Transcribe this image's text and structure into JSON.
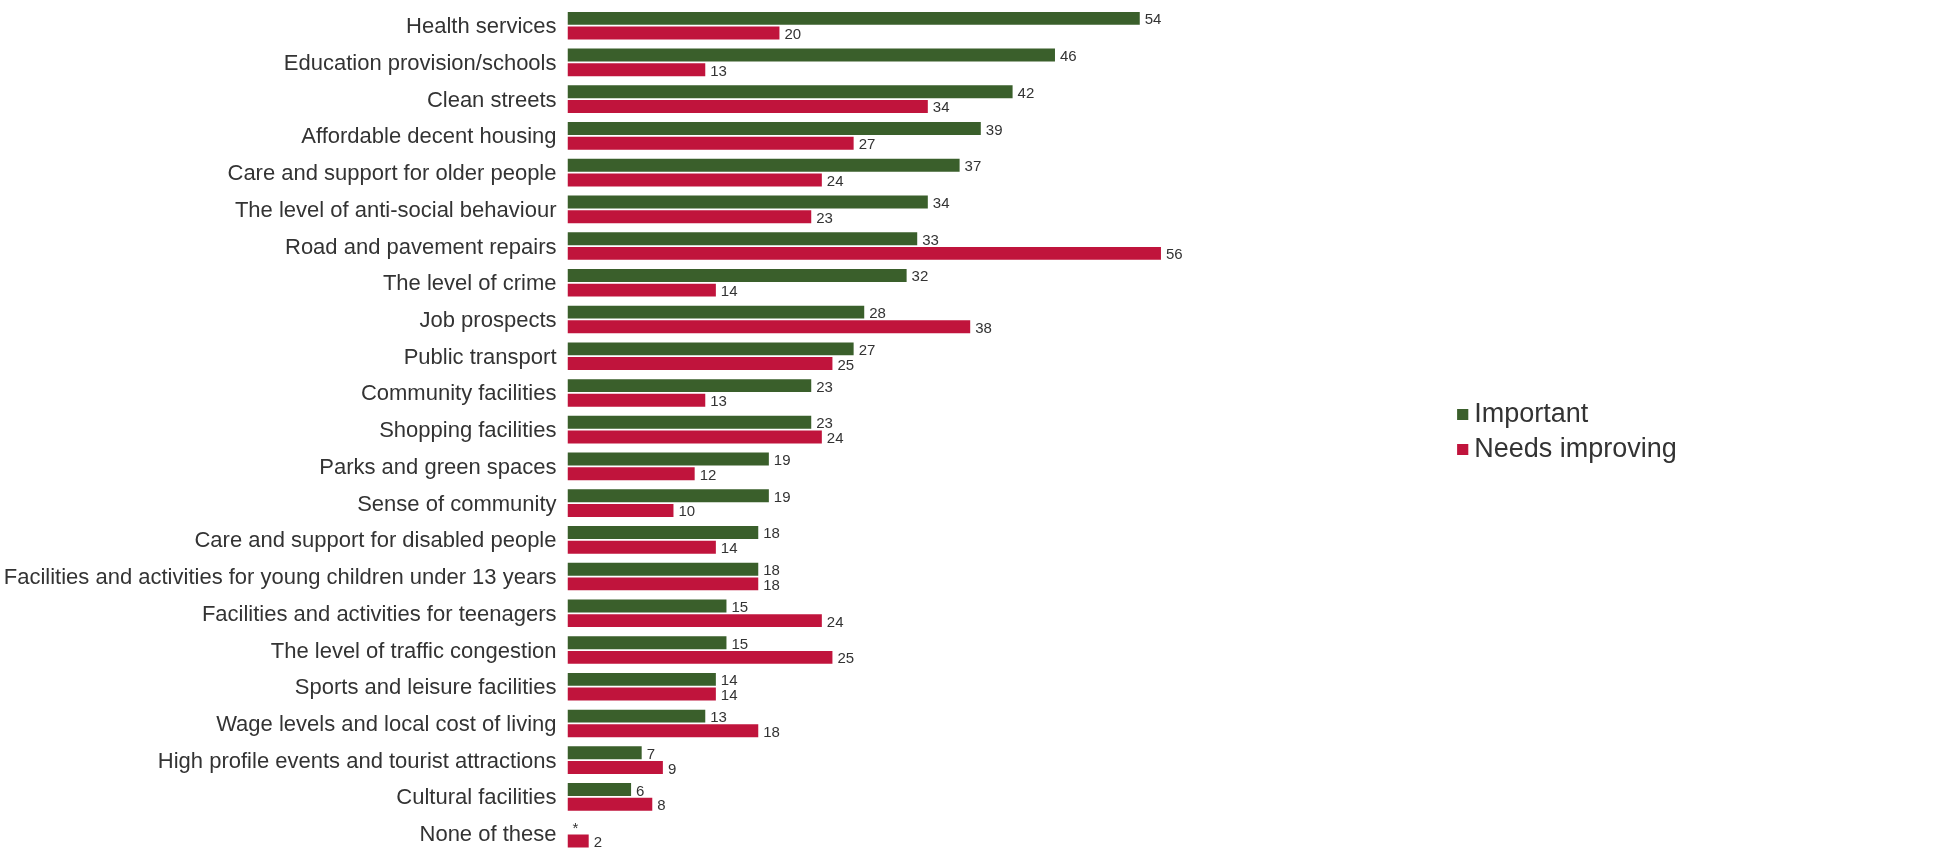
{
  "chart_data": {
    "type": "bar",
    "orientation": "horizontal",
    "categories": [
      "Health services",
      "Education provision/schools",
      "Clean streets",
      "Affordable decent housing",
      "Care and support for older people",
      "The level of anti-social behaviour",
      "Road and pavement repairs",
      "The level of crime",
      "Job prospects",
      "Public transport",
      "Community facilities",
      "Shopping facilities",
      "Parks and green spaces",
      "Sense of community",
      "Care and support for disabled people",
      "Facilities and activities for young children under 13 years",
      "Facilities and activities for teenagers",
      "The level of traffic congestion",
      "Sports and leisure facilities",
      "Wage levels and local cost of living",
      "High profile events and tourist attractions",
      "Cultural facilities",
      "None of these"
    ],
    "series": [
      {
        "name": "Important",
        "color": "#3a5f2b",
        "values": [
          54,
          46,
          42,
          39,
          37,
          34,
          33,
          32,
          28,
          27,
          23,
          23,
          19,
          19,
          18,
          18,
          15,
          15,
          14,
          13,
          7,
          6,
          0
        ],
        "value_labels": [
          "54",
          "46",
          "42",
          "39",
          "37",
          "34",
          "33",
          "32",
          "28",
          "27",
          "23",
          "23",
          "19",
          "19",
          "18",
          "18",
          "15",
          "15",
          "14",
          "13",
          "7",
          "6",
          "*"
        ]
      },
      {
        "name": "Needs improving",
        "color": "#c0143c",
        "values": [
          20,
          13,
          34,
          27,
          24,
          23,
          56,
          14,
          38,
          25,
          13,
          24,
          12,
          10,
          14,
          18,
          24,
          25,
          14,
          18,
          9,
          8,
          2
        ],
        "value_labels": [
          "20",
          "13",
          "34",
          "27",
          "24",
          "23",
          "56",
          "14",
          "38",
          "25",
          "13",
          "24",
          "12",
          "10",
          "14",
          "18",
          "24",
          "25",
          "14",
          "18",
          "9",
          "8",
          "2"
        ]
      }
    ],
    "legend": "right",
    "grid": false,
    "tick_labels": "y"
  }
}
